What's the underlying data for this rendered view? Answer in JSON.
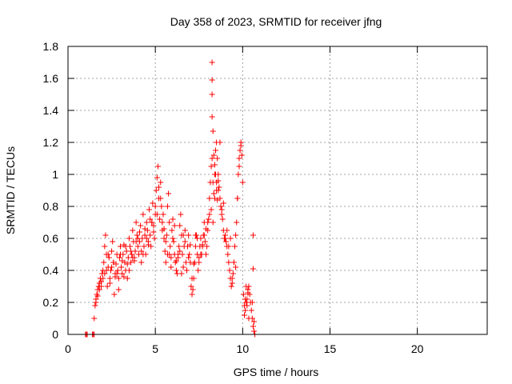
{
  "chart_data": {
    "type": "scatter",
    "title": "Day 358 of 2023, SRMTID for receiver jfng",
    "xlabel": "GPS time / hours",
    "ylabel": "SRMTID / TECUs",
    "xlim": [
      0,
      24
    ],
    "ylim": [
      0,
      1.8
    ],
    "xticks": [
      0,
      5,
      10,
      15,
      20
    ],
    "xtick_labels": [
      "0",
      "5",
      "10",
      "15",
      "20"
    ],
    "yticks": [
      0,
      0.2,
      0.4,
      0.6,
      0.8,
      1.0,
      1.2,
      1.4,
      1.6,
      1.8
    ],
    "ytick_labels": [
      "0",
      "0.2",
      "0.4",
      "0.6",
      "0.8",
      "1",
      "1.2",
      "1.4",
      "1.6",
      "1.8"
    ],
    "grid": true,
    "marker_color": "#ff0000",
    "series": [
      {
        "name": "SRMTID",
        "marker": "plus",
        "x": [
          1.0,
          1.05,
          1.1,
          1.4,
          1.45,
          1.5,
          1.5,
          1.55,
          1.6,
          1.65,
          1.7,
          1.75,
          1.8,
          1.85,
          1.9,
          1.95,
          2.0,
          2.05,
          2.1,
          2.15,
          2.2,
          2.25,
          2.3,
          2.35,
          2.4,
          2.45,
          2.5,
          2.55,
          2.6,
          2.65,
          2.7,
          2.75,
          2.8,
          2.85,
          2.9,
          2.95,
          3.0,
          3.05,
          3.1,
          3.15,
          3.2,
          3.25,
          3.3,
          3.35,
          3.4,
          3.45,
          3.5,
          3.55,
          3.6,
          3.65,
          3.7,
          3.75,
          3.8,
          3.85,
          3.9,
          3.95,
          4.0,
          4.05,
          4.1,
          4.15,
          4.2,
          4.25,
          4.3,
          4.35,
          4.4,
          4.45,
          4.5,
          4.55,
          4.6,
          4.65,
          4.7,
          4.75,
          4.8,
          4.85,
          4.9,
          4.95,
          5.0,
          5.05,
          5.1,
          5.15,
          5.2,
          5.25,
          5.3,
          5.35,
          5.4,
          5.45,
          5.5,
          5.55,
          5.6,
          5.65,
          5.7,
          5.75,
          5.8,
          5.85,
          5.9,
          5.95,
          6.0,
          6.05,
          6.1,
          6.15,
          6.2,
          6.25,
          6.3,
          6.35,
          6.4,
          6.45,
          6.5,
          6.55,
          6.6,
          6.65,
          6.7,
          6.75,
          6.8,
          6.85,
          6.9,
          6.95,
          7.0,
          7.05,
          7.1,
          7.15,
          7.2,
          7.25,
          7.3,
          7.35,
          7.4,
          7.45,
          7.5,
          7.55,
          7.6,
          7.65,
          7.7,
          7.75,
          7.8,
          7.85,
          7.9,
          7.95,
          8.0,
          8.05,
          8.1,
          8.15,
          8.2,
          8.25,
          8.3,
          8.35,
          8.4,
          8.45,
          8.5,
          8.55,
          8.6,
          8.65,
          8.7,
          8.75,
          8.8,
          8.85,
          8.9,
          8.95,
          9.0,
          9.05,
          9.1,
          9.15,
          9.2,
          9.25,
          9.3,
          9.35,
          9.4,
          9.45,
          9.5,
          9.55,
          9.6,
          9.65,
          9.7,
          9.75,
          9.8,
          9.85,
          9.9,
          9.95,
          10.0,
          10.05,
          10.1,
          10.15,
          10.2,
          10.25,
          10.3,
          10.35,
          10.4,
          10.45,
          10.5,
          10.55,
          10.6,
          10.65,
          1.6,
          1.8,
          2.0,
          2.2,
          2.4,
          2.6,
          2.8,
          3.0,
          3.2,
          3.4,
          3.6,
          3.8,
          4.0,
          4.2,
          4.4,
          4.6,
          4.8,
          5.0,
          5.2,
          5.4,
          5.6,
          5.8,
          6.0,
          6.2,
          6.4,
          6.6,
          6.8,
          7.0,
          7.2,
          7.4,
          7.6,
          7.8,
          8.0,
          8.2,
          8.4,
          8.6,
          8.8,
          9.0,
          9.2,
          9.4,
          9.6,
          9.8,
          1.7,
          1.9,
          2.1,
          2.3,
          2.5,
          2.7,
          2.9,
          3.1,
          3.3,
          3.5,
          3.7,
          3.9,
          4.1,
          4.3,
          4.5,
          4.7,
          4.9,
          5.1,
          5.3,
          5.5,
          5.7,
          5.9,
          6.1,
          6.3,
          6.5,
          6.7,
          6.9,
          7.1,
          7.3,
          7.5,
          7.7,
          7.9,
          8.1,
          8.3,
          8.5,
          8.7,
          8.9,
          9.1,
          9.3,
          9.5,
          9.7,
          9.9,
          8.25,
          8.25,
          8.25,
          8.25,
          8.3,
          8.35,
          8.4,
          8.45,
          8.5,
          8.55,
          8.6,
          10.1,
          10.15,
          10.2,
          10.25,
          10.3,
          10.35,
          10.55,
          10.6,
          10.6,
          10.65,
          10.7
        ],
        "y": [
          0.0,
          0.0,
          0.0,
          0.0,
          0.0,
          0.0,
          0.1,
          0.18,
          0.22,
          0.25,
          0.28,
          0.3,
          0.32,
          0.35,
          0.33,
          0.38,
          0.4,
          0.45,
          0.55,
          0.62,
          0.5,
          0.3,
          0.42,
          0.48,
          0.35,
          0.4,
          0.52,
          0.58,
          0.45,
          0.25,
          0.38,
          0.44,
          0.5,
          0.4,
          0.35,
          0.48,
          0.55,
          0.42,
          0.38,
          0.5,
          0.56,
          0.45,
          0.4,
          0.52,
          0.35,
          0.48,
          0.6,
          0.55,
          0.45,
          0.5,
          0.65,
          0.58,
          0.48,
          0.52,
          0.7,
          0.62,
          0.55,
          0.5,
          0.58,
          0.68,
          0.45,
          0.6,
          0.75,
          0.55,
          0.62,
          0.5,
          0.7,
          0.65,
          0.58,
          0.78,
          0.62,
          0.55,
          0.7,
          0.82,
          0.68,
          0.6,
          0.75,
          0.9,
          0.98,
          1.05,
          0.85,
          0.72,
          0.95,
          0.8,
          0.65,
          0.75,
          0.6,
          0.52,
          0.45,
          0.62,
          0.8,
          0.88,
          0.7,
          0.55,
          0.48,
          0.65,
          0.72,
          0.58,
          0.5,
          0.45,
          0.4,
          0.38,
          0.48,
          0.55,
          0.68,
          0.75,
          0.62,
          0.5,
          0.42,
          0.55,
          0.65,
          0.45,
          0.4,
          0.55,
          0.62,
          0.5,
          0.45,
          0.3,
          0.25,
          0.28,
          0.35,
          0.45,
          0.55,
          0.62,
          0.5,
          0.4,
          0.45,
          0.55,
          0.6,
          0.5,
          0.55,
          0.62,
          0.7,
          0.58,
          0.5,
          0.55,
          0.65,
          0.72,
          0.85,
          0.95,
          1.05,
          1.1,
          0.95,
          0.88,
          1.0,
          1.15,
          1.2,
          1.1,
          1.0,
          0.92,
          0.85,
          0.8,
          0.78,
          0.72,
          0.65,
          0.6,
          0.62,
          0.58,
          0.55,
          0.5,
          0.45,
          0.4,
          0.35,
          0.3,
          0.32,
          0.38,
          0.45,
          0.55,
          0.62,
          0.7,
          0.85,
          1.0,
          1.1,
          1.15,
          1.18,
          1.12,
          0.95,
          0.25,
          0.18,
          0.15,
          0.2,
          0.22,
          0.28,
          0.3,
          0.25,
          0.2,
          0.15,
          0.1,
          0.05,
          0.02,
          0.2,
          0.28,
          0.35,
          0.4,
          0.32,
          0.45,
          0.38,
          0.5,
          0.36,
          0.44,
          0.52,
          0.46,
          0.6,
          0.52,
          0.66,
          0.56,
          0.7,
          0.8,
          0.92,
          0.7,
          0.58,
          0.5,
          0.6,
          0.46,
          0.52,
          0.62,
          0.4,
          0.56,
          0.44,
          0.6,
          0.5,
          0.62,
          0.7,
          0.78,
          0.85,
          0.9,
          0.75,
          0.6,
          0.55,
          0.35,
          0.42,
          1.05,
          0.24,
          0.3,
          0.38,
          0.5,
          0.42,
          0.36,
          0.28,
          0.46,
          0.55,
          0.4,
          0.48,
          0.58,
          0.64,
          0.5,
          0.6,
          0.72,
          0.64,
          0.75,
          0.85,
          0.66,
          0.5,
          0.42,
          0.68,
          0.5,
          0.38,
          0.58,
          0.48,
          0.35,
          0.62,
          0.48,
          0.56,
          0.66,
          0.75,
          0.7,
          0.95,
          1.2,
          0.82,
          0.65,
          0.6,
          0.45,
          0.85,
          1.2,
          1.7,
          1.59,
          1.5,
          1.36,
          1.27,
          1.12,
          1.06,
          1.0,
          0.9,
          0.84,
          0.96,
          0.12,
          0.22,
          0.3,
          0.18,
          0.26,
          0.1,
          0.2,
          0.62,
          0.41,
          0.08,
          0.0
        ]
      }
    ]
  }
}
